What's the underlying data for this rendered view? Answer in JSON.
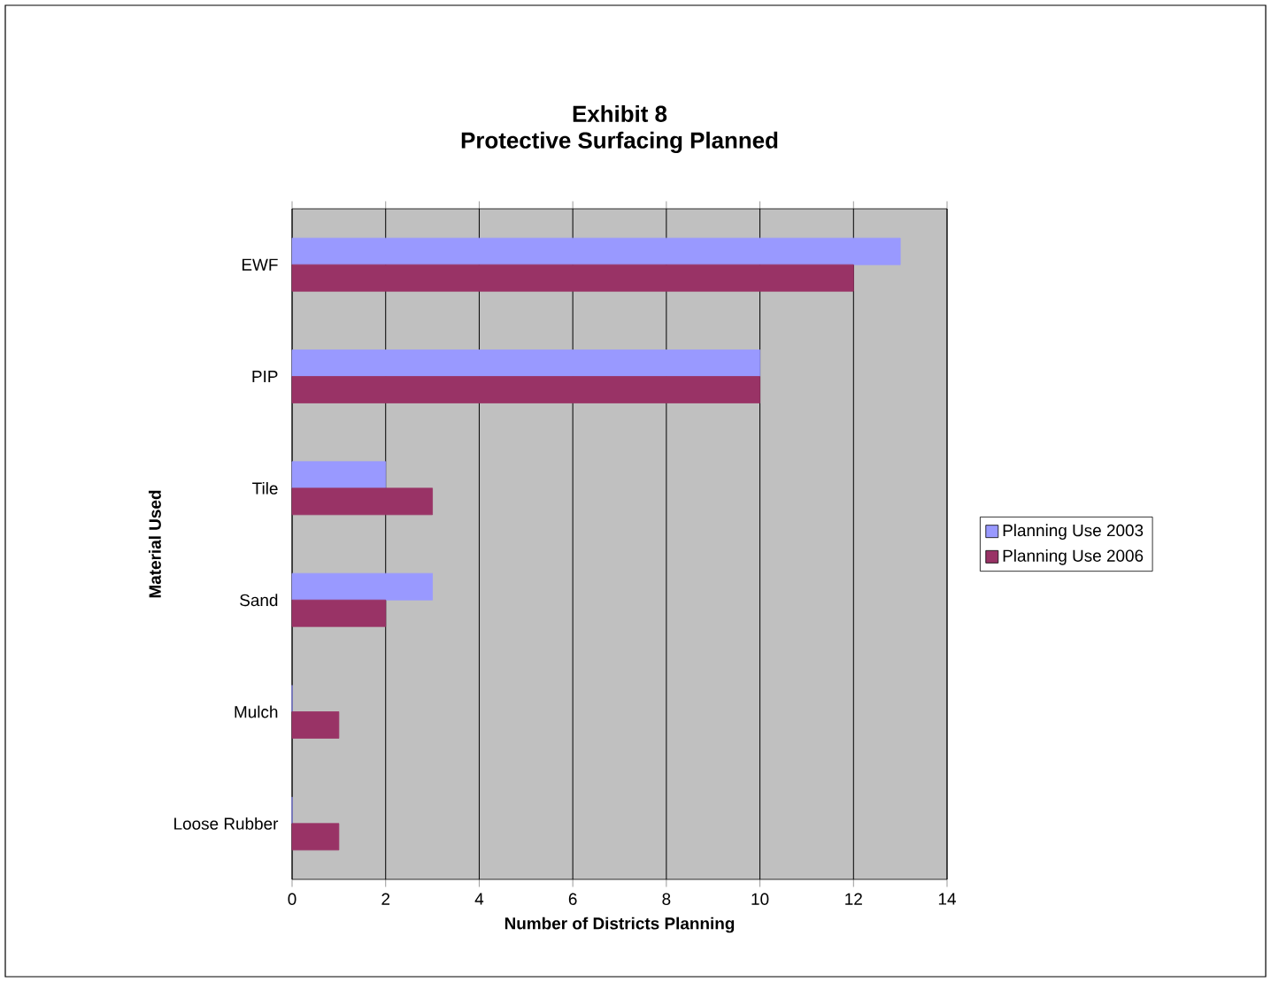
{
  "chart_data": {
    "type": "bar",
    "orientation": "horizontal",
    "title": "Exhibit 8",
    "subtitle": "Protective Surfacing Planned",
    "xlabel": "Number of Districts Planning",
    "ylabel": "Material Used",
    "categories": [
      "EWF",
      "PIP",
      "Tile",
      "Sand",
      "Mulch",
      "Loose Rubber"
    ],
    "series": [
      {
        "name": "Planning Use 2003",
        "color": "#9999ff",
        "values": [
          13,
          10,
          2,
          3,
          0,
          0
        ]
      },
      {
        "name": "Planning Use 2006",
        "color": "#993366",
        "values": [
          12,
          10,
          3,
          2,
          1,
          1
        ]
      }
    ],
    "xlim": [
      0,
      14
    ],
    "xticks": [
      0,
      2,
      4,
      6,
      8,
      10,
      12,
      14
    ],
    "grid": "x",
    "legend": "right"
  }
}
